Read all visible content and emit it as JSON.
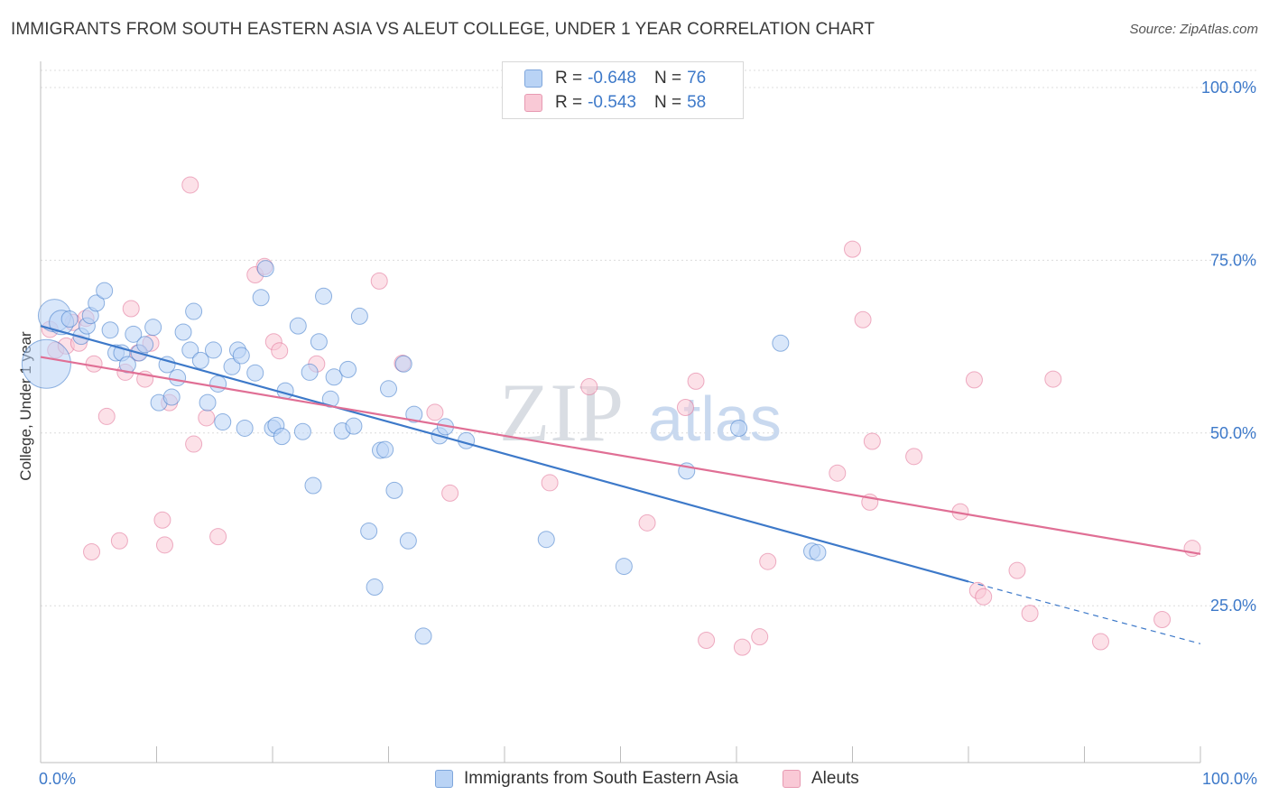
{
  "title": "IMMIGRANTS FROM SOUTH EASTERN ASIA VS ALEUT COLLEGE, UNDER 1 YEAR CORRELATION CHART",
  "source": "Source: ZipAtlas.com",
  "watermark": {
    "left": "ZIP",
    "right": "atlas"
  },
  "legend": {
    "r_label": "R =",
    "n_label": "N =",
    "rows": [
      {
        "r": "-0.648",
        "n": "76",
        "fill": "#b9d3f5",
        "stroke": "#7ea6dc"
      },
      {
        "r": "-0.543",
        "n": "58",
        "fill": "#f9c9d6",
        "stroke": "#e79ab2"
      }
    ]
  },
  "chart_data": {
    "type": "scatter",
    "title": "IMMIGRANTS FROM SOUTH EASTERN ASIA VS ALEUT COLLEGE, UNDER 1 YEAR CORRELATION CHART",
    "xlabel": "",
    "ylabel": "College, Under 1 year",
    "xlim": [
      0,
      100
    ],
    "ylim": [
      0,
      102
    ],
    "x_tick_labels": [
      "0.0%",
      "100.0%"
    ],
    "y_ticks": [
      25,
      50,
      75,
      100
    ],
    "y_tick_labels": [
      "25.0%",
      "50.0%",
      "75.0%",
      "100.0%"
    ],
    "grid": true,
    "legend_position": "bottom-center",
    "series": [
      {
        "name": "Immigrants from South Eastern Asia",
        "color": "#3d79c9",
        "fill": "#b9d3f5",
        "trend": {
          "x0": 0,
          "y0": 65.5,
          "x1": 80,
          "y1": 28.5,
          "dash_to_x": 100,
          "dash_to_y": 19.5
        },
        "points": [
          [
            0.5,
            60.0,
            3
          ],
          [
            1.2,
            67.0,
            2
          ],
          [
            1.8,
            66.0,
            1.5
          ],
          [
            2.5,
            66.5,
            1
          ],
          [
            3.5,
            64.0,
            1
          ],
          [
            4.0,
            65.5,
            1
          ],
          [
            4.3,
            67.0,
            1
          ],
          [
            4.8,
            68.8,
            1
          ],
          [
            5.5,
            70.6,
            1
          ],
          [
            6.0,
            64.9,
            1
          ],
          [
            6.5,
            61.6,
            1
          ],
          [
            7.0,
            61.6,
            1
          ],
          [
            7.5,
            59.9,
            1
          ],
          [
            8.0,
            64.3,
            1
          ],
          [
            8.5,
            61.6,
            1
          ],
          [
            9.0,
            62.8,
            1
          ],
          [
            9.7,
            65.3,
            1
          ],
          [
            10.2,
            54.4,
            1
          ],
          [
            10.9,
            59.9,
            1
          ],
          [
            11.3,
            55.2,
            1
          ],
          [
            11.8,
            58.0,
            1
          ],
          [
            12.3,
            64.6,
            1
          ],
          [
            12.9,
            62.0,
            1
          ],
          [
            13.2,
            67.6,
            1
          ],
          [
            13.8,
            60.5,
            1
          ],
          [
            14.4,
            54.4,
            1
          ],
          [
            14.9,
            62.0,
            1
          ],
          [
            15.3,
            57.1,
            1
          ],
          [
            15.7,
            51.6,
            1
          ],
          [
            16.5,
            59.6,
            1
          ],
          [
            17.0,
            62.0,
            1
          ],
          [
            17.3,
            61.2,
            1
          ],
          [
            17.6,
            50.7,
            1
          ],
          [
            18.5,
            58.7,
            1
          ],
          [
            19.0,
            69.6,
            1
          ],
          [
            19.4,
            73.8,
            1
          ],
          [
            20.0,
            50.7,
            1
          ],
          [
            20.3,
            51.1,
            1
          ],
          [
            20.8,
            49.5,
            1
          ],
          [
            21.1,
            56.1,
            1
          ],
          [
            22.2,
            65.5,
            1
          ],
          [
            22.6,
            50.2,
            1
          ],
          [
            23.2,
            58.8,
            1
          ],
          [
            23.5,
            42.4,
            1
          ],
          [
            24.0,
            63.2,
            1
          ],
          [
            24.4,
            69.8,
            1
          ],
          [
            25.0,
            54.9,
            1
          ],
          [
            25.3,
            58.1,
            1
          ],
          [
            26.0,
            50.3,
            1
          ],
          [
            26.5,
            59.2,
            1
          ],
          [
            27.0,
            51.0,
            1
          ],
          [
            27.5,
            66.9,
            1
          ],
          [
            28.3,
            35.8,
            1
          ],
          [
            28.8,
            27.7,
            1
          ],
          [
            29.3,
            47.5,
            1
          ],
          [
            29.7,
            47.6,
            1
          ],
          [
            30.0,
            56.4,
            1
          ],
          [
            30.5,
            41.7,
            1
          ],
          [
            31.3,
            60.0,
            1
          ],
          [
            31.7,
            34.4,
            1
          ],
          [
            32.2,
            52.7,
            1
          ],
          [
            33.0,
            20.6,
            1
          ],
          [
            34.4,
            49.6,
            1
          ],
          [
            34.9,
            50.9,
            1
          ],
          [
            36.7,
            48.9,
            1
          ],
          [
            43.6,
            34.6,
            1
          ],
          [
            50.3,
            30.7,
            1
          ],
          [
            55.7,
            44.5,
            1
          ],
          [
            60.2,
            50.7,
            1
          ],
          [
            63.8,
            63.0,
            1
          ],
          [
            66.5,
            32.9,
            1
          ],
          [
            67.0,
            32.7,
            1
          ]
        ]
      },
      {
        "name": "Aleuts",
        "color": "#e06f95",
        "fill": "#f9c9d6",
        "trend": {
          "x0": 0,
          "y0": 61.0,
          "x1": 100,
          "y1": 32.5
        },
        "points": [
          [
            0.8,
            65.0,
            1
          ],
          [
            1.3,
            62.0,
            1
          ],
          [
            2.2,
            62.6,
            1
          ],
          [
            2.8,
            66.0,
            1
          ],
          [
            3.3,
            63.0,
            1
          ],
          [
            3.9,
            66.6,
            1
          ],
          [
            4.4,
            32.8,
            1
          ],
          [
            4.6,
            60.0,
            1
          ],
          [
            5.7,
            52.4,
            1
          ],
          [
            6.8,
            34.4,
            1
          ],
          [
            7.3,
            58.8,
            1
          ],
          [
            7.8,
            68.0,
            1
          ],
          [
            8.4,
            61.6,
            1
          ],
          [
            9.0,
            57.8,
            1
          ],
          [
            9.5,
            63.0,
            1
          ],
          [
            10.5,
            37.4,
            1
          ],
          [
            10.7,
            33.8,
            1
          ],
          [
            11.1,
            54.4,
            1
          ],
          [
            12.9,
            85.9,
            1
          ],
          [
            13.2,
            48.4,
            1
          ],
          [
            14.3,
            52.2,
            1
          ],
          [
            15.3,
            35.0,
            1
          ],
          [
            18.5,
            72.9,
            1
          ],
          [
            19.3,
            74.1,
            1
          ],
          [
            20.1,
            63.2,
            1
          ],
          [
            20.6,
            61.9,
            1
          ],
          [
            23.8,
            60.0,
            1
          ],
          [
            29.2,
            72.0,
            1
          ],
          [
            31.2,
            60.1,
            1
          ],
          [
            34.0,
            53.0,
            1
          ],
          [
            35.3,
            41.3,
            1
          ],
          [
            43.9,
            42.8,
            1
          ],
          [
            47.3,
            56.7,
            1
          ],
          [
            52.3,
            37.0,
            1
          ],
          [
            55.6,
            53.7,
            1
          ],
          [
            56.5,
            57.5,
            1
          ],
          [
            57.4,
            20.0,
            1
          ],
          [
            60.5,
            19.0,
            1
          ],
          [
            62.0,
            20.5,
            1
          ],
          [
            62.7,
            31.4,
            1
          ],
          [
            68.7,
            44.2,
            1
          ],
          [
            70.0,
            76.6,
            1
          ],
          [
            70.9,
            66.4,
            1
          ],
          [
            71.5,
            40.0,
            1
          ],
          [
            71.7,
            48.8,
            1
          ],
          [
            75.3,
            46.6,
            1
          ],
          [
            79.3,
            38.6,
            1
          ],
          [
            80.5,
            57.7,
            1
          ],
          [
            80.8,
            27.2,
            1
          ],
          [
            81.3,
            26.3,
            1
          ],
          [
            84.2,
            30.1,
            1
          ],
          [
            85.3,
            23.9,
            1
          ],
          [
            87.3,
            57.8,
            1
          ],
          [
            91.4,
            19.8,
            1
          ],
          [
            96.7,
            23.0,
            1
          ],
          [
            99.3,
            33.3,
            1
          ]
        ]
      }
    ]
  }
}
